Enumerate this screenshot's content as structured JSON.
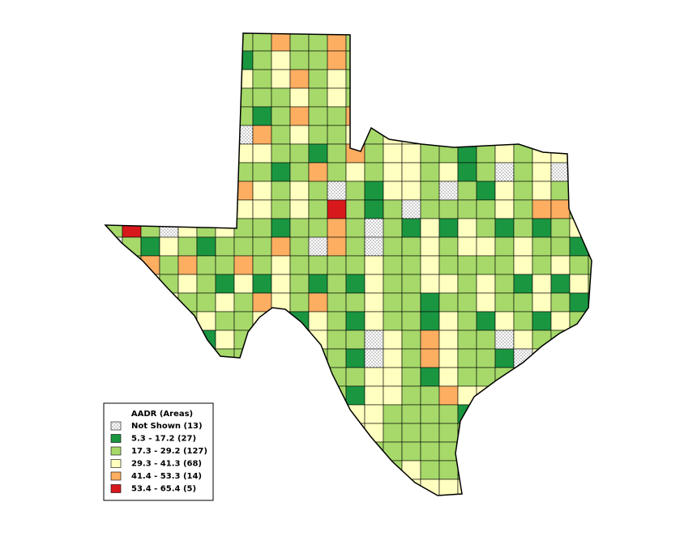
{
  "legend": {
    "title": "AADR (Areas)",
    "items": [
      {
        "label": "Not Shown (13)",
        "color": "dotted"
      },
      {
        "label": "5.3 - 17.2 (27)",
        "color": "#1a9641"
      },
      {
        "label": "17.3 - 29.2 (127)",
        "color": "#a6d96a"
      },
      {
        "label": "29.3 - 41.3 (68)",
        "color": "#ffffbf"
      },
      {
        "label": "41.4 - 53.3 (14)",
        "color": "#fdae61"
      },
      {
        "label": "53.4 - 65.4 (5)",
        "color": "#d7191c"
      }
    ]
  }
}
